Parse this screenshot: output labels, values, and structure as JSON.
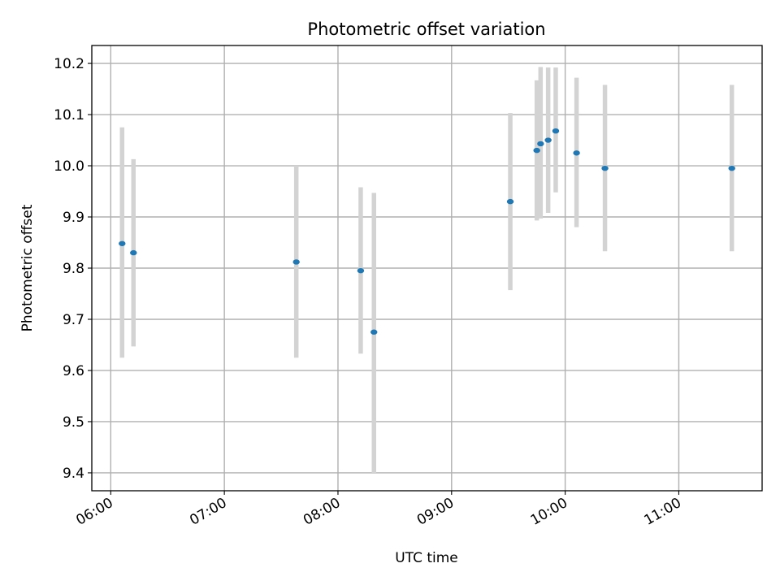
{
  "chart_data": {
    "type": "scatter",
    "title": "Photometric offset variation",
    "xlabel": "UTC time",
    "ylabel": "Photometric offset",
    "x_ticks": [
      "06:00",
      "07:00",
      "08:00",
      "09:00",
      "10:00",
      "11:00"
    ],
    "y_ticks": [
      "9.4",
      "9.5",
      "9.6",
      "9.7",
      "9.8",
      "9.9",
      "10.0",
      "10.1",
      "10.2"
    ],
    "xlim": [
      "05:50",
      "11:44"
    ],
    "ylim": [
      9.365,
      10.235
    ],
    "grid": true,
    "colors": {
      "marker": "#1f77b4",
      "errorbar": "#d3d3d3",
      "grid": "#b0b0b0"
    },
    "points": [
      {
        "x": "06:06",
        "y": 9.848,
        "y_low": 9.625,
        "y_high": 10.075
      },
      {
        "x": "06:12",
        "y": 9.83,
        "y_low": 9.647,
        "y_high": 10.013
      },
      {
        "x": "07:38",
        "y": 9.812,
        "y_low": 9.625,
        "y_high": 10.0
      },
      {
        "x": "08:12",
        "y": 9.795,
        "y_low": 9.633,
        "y_high": 9.958
      },
      {
        "x": "08:19",
        "y": 9.675,
        "y_low": 9.4,
        "y_high": 9.947
      },
      {
        "x": "09:31",
        "y": 9.93,
        "y_low": 9.757,
        "y_high": 10.103
      },
      {
        "x": "09:45",
        "y": 10.03,
        "y_low": 9.893,
        "y_high": 10.167
      },
      {
        "x": "09:47",
        "y": 10.043,
        "y_low": 9.897,
        "y_high": 10.193
      },
      {
        "x": "09:51",
        "y": 10.05,
        "y_low": 9.908,
        "y_high": 10.192
      },
      {
        "x": "09:55",
        "y": 10.068,
        "y_low": 9.948,
        "y_high": 10.192
      },
      {
        "x": "10:06",
        "y": 10.025,
        "y_low": 9.88,
        "y_high": 10.172
      },
      {
        "x": "10:21",
        "y": 9.995,
        "y_low": 9.833,
        "y_high": 10.158
      },
      {
        "x": "11:28",
        "y": 9.995,
        "y_low": 9.833,
        "y_high": 10.158
      }
    ]
  }
}
